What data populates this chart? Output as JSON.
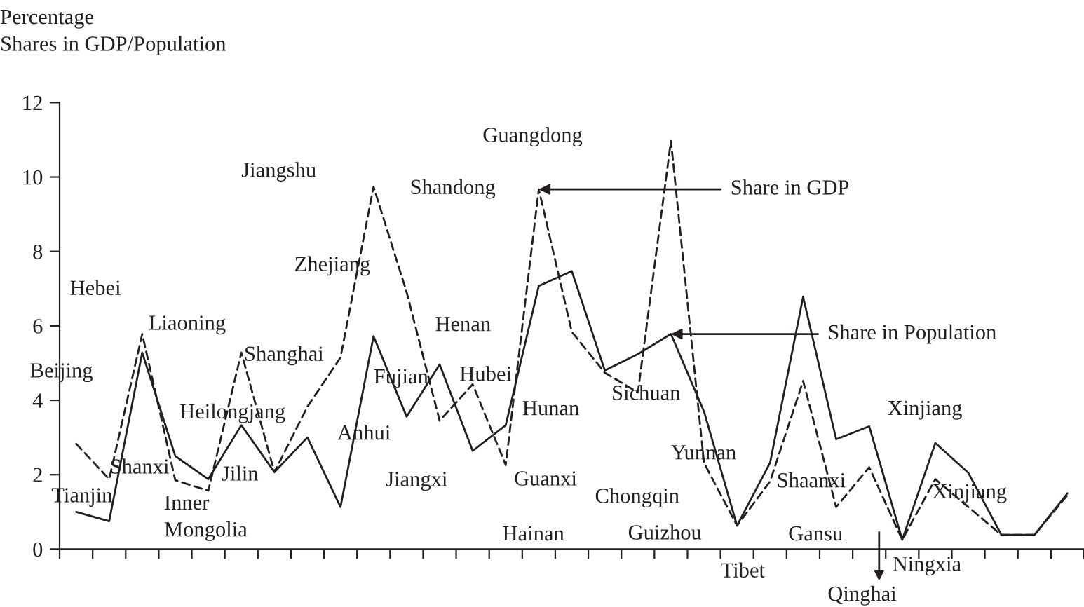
{
  "chart_data": {
    "type": "line",
    "ylabel": "Percentage\nShares in GDP/Population",
    "categories": [
      null,
      null,
      null,
      null,
      null,
      null,
      null,
      null,
      null,
      null,
      null,
      null,
      null,
      null,
      null,
      null,
      null,
      null,
      null,
      null,
      null,
      null,
      null,
      null,
      null,
      null,
      null,
      null,
      null,
      null,
      null
    ],
    "series": [
      {
        "name": "Share in GDP",
        "color": "#231f20",
        "line_style": "dashed",
        "values": [
          2.83,
          1.88,
          5.78,
          1.85,
          1.57,
          5.28,
          2.07,
          3.83,
          5.15,
          9.74,
          6.91,
          3.45,
          4.43,
          2.26,
          9.67,
          5.84,
          4.74,
          4.21,
          10.97,
          2.32,
          0.63,
          1.82,
          4.52,
          1.13,
          2.2,
          0.25,
          1.88,
          1.13,
          0.38,
          0.38,
          1.45
        ]
      },
      {
        "name": "Share in Population",
        "color": "#231f20",
        "line_style": "solid",
        "values": [
          1.0,
          0.75,
          5.28,
          2.5,
          1.88,
          3.33,
          2.07,
          3.0,
          1.13,
          5.72,
          3.56,
          4.96,
          2.64,
          3.33,
          7.07,
          7.47,
          4.8,
          5.24,
          5.78,
          3.7,
          0.63,
          2.32,
          6.78,
          2.95,
          3.3,
          0.25,
          2.85,
          2.05,
          0.38,
          0.38,
          1.5
        ]
      }
    ],
    "annotations": [
      "Beijing",
      "Tianjin",
      "Hebei",
      "Shanxi",
      "Liaoning",
      "Inner\nMongolia",
      "Heilongjang",
      "Jilin",
      "Shanghai",
      "Zhejiang",
      "Jiangshu",
      "Anhui",
      "Fujian",
      "Jiangxi",
      "Henan",
      "Hubei",
      "Shandong",
      "Guangdong",
      "Hunan",
      "Guanxi",
      "Hainan",
      "Sichuan",
      "Yunnan",
      "Chongqin",
      "Guizhou",
      "Tibet",
      "Shaanxi",
      "Gansu",
      "Qinghai",
      "Ningxia",
      "Xinjiang",
      "Xinjiang"
    ],
    "ylim": [
      0,
      12
    ],
    "yticks": [
      0,
      2,
      4,
      6,
      8,
      10,
      12
    ],
    "marker": "none",
    "grid": false,
    "legend": false
  }
}
